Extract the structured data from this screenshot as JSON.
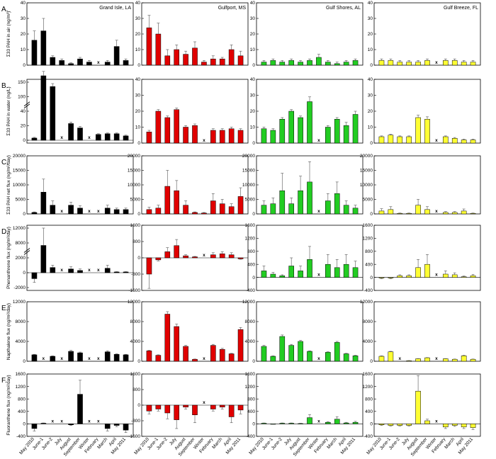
{
  "figure": {
    "sites": [
      "Grand Isle, LA",
      "Gulfport, MS",
      "Gulf Shores, AL",
      "Gulf Breeze, FL"
    ],
    "site_colors": [
      "#000000",
      "#e00000",
      "#22cc22",
      "#ffff33"
    ],
    "months": [
      "May 2010",
      "June-1",
      "June-2",
      "July",
      "August",
      "September",
      "Winter",
      "February",
      "March",
      "April",
      "May 2011"
    ],
    "missing_marker": "x"
  },
  "chart_data": [
    {
      "type": "bar",
      "row": "A.",
      "site": "Grand Isle, LA",
      "ylabel": "Σ33 PAH in air (ng/m³)",
      "ylim": [
        0,
        40
      ],
      "yticks": [
        "0",
        "10",
        "20",
        "30",
        "40"
      ],
      "values": [
        16,
        22,
        5,
        3,
        1,
        4,
        2,
        null,
        2,
        12,
        3
      ],
      "errors": [
        6,
        8,
        1,
        1,
        0.5,
        1,
        1,
        null,
        1,
        4,
        1
      ]
    },
    {
      "type": "bar",
      "row": "A.",
      "site": "Gulfport, MS",
      "ylim": [
        0,
        40
      ],
      "yticks": [
        "0",
        "10",
        "20",
        "30",
        "40"
      ],
      "values": [
        24,
        20,
        6,
        10,
        7,
        11,
        2,
        4,
        4,
        10,
        6
      ],
      "errors": [
        8,
        7,
        4,
        3,
        2,
        4,
        1,
        2,
        1,
        3,
        3
      ]
    },
    {
      "type": "bar",
      "row": "A.",
      "site": "Gulf Shores, AL",
      "ylim": [
        0,
        40
      ],
      "yticks": [
        "0",
        "10",
        "20",
        "30",
        "40"
      ],
      "values": [
        2,
        3,
        2,
        3,
        2,
        3,
        5,
        2,
        1,
        2,
        3
      ],
      "errors": [
        1,
        1,
        1,
        1,
        1,
        1,
        2,
        1,
        1,
        1,
        1
      ]
    },
    {
      "type": "bar",
      "row": "A.",
      "site": "Gulf Breeze, FL",
      "ylim": [
        0,
        40
      ],
      "yticks": [
        "0",
        "10",
        "20",
        "30",
        "40"
      ],
      "values": [
        3,
        3,
        2,
        2,
        2,
        3,
        null,
        3,
        3,
        2,
        2
      ],
      "errors": [
        1,
        1,
        1,
        1,
        1,
        1,
        null,
        1,
        1,
        1,
        1
      ]
    },
    {
      "type": "bar",
      "row": "B.",
      "site": "Grand Isle, LA",
      "ylabel": "Σ33 PAH in water (ng/L)",
      "axis_break": true,
      "ylim": [
        0,
        200
      ],
      "yticks": [
        "0",
        "20",
        "40",
        "100",
        "150"
      ],
      "values": [
        3,
        172,
        135,
        null,
        23,
        17,
        null,
        8,
        9,
        9,
        6
      ],
      "errors": [
        1,
        15,
        10,
        null,
        2,
        2,
        null,
        1,
        1,
        1,
        1
      ]
    },
    {
      "type": "bar",
      "row": "B.",
      "site": "Gulfport, MS",
      "ylim": [
        0,
        40
      ],
      "yticks": [
        "0",
        "10",
        "20",
        "30",
        "40"
      ],
      "values": [
        7,
        20,
        16,
        21,
        10,
        11,
        null,
        8,
        8,
        9,
        8
      ],
      "errors": [
        1,
        1,
        1,
        1,
        1,
        1,
        null,
        1,
        1,
        1,
        1
      ]
    },
    {
      "type": "bar",
      "row": "B.",
      "site": "Gulf Shores, AL",
      "ylim": [
        0,
        40
      ],
      "yticks": [
        "0",
        "10",
        "20",
        "30",
        "40"
      ],
      "values": [
        9,
        8,
        15,
        20,
        16,
        26,
        null,
        10,
        15,
        11,
        18
      ],
      "errors": [
        1,
        1,
        1,
        1,
        1,
        3,
        null,
        1,
        1,
        2,
        2
      ]
    },
    {
      "type": "bar",
      "row": "B.",
      "site": "Gulf Breeze, FL",
      "ylim": [
        0,
        40
      ],
      "yticks": [
        "0",
        "10",
        "20",
        "30",
        "40"
      ],
      "values": [
        4,
        5,
        4,
        4,
        16,
        15,
        null,
        4,
        3,
        2,
        2
      ],
      "errors": [
        0.5,
        0.5,
        0.5,
        0.5,
        1.5,
        1.5,
        null,
        0.5,
        0.5,
        0.5,
        0.5
      ]
    },
    {
      "type": "bar",
      "row": "C.",
      "site": "Grand Isle, LA",
      "ylabel": "Σ33 PAH net flux (ng/m²/day)",
      "ylim": [
        0,
        20000
      ],
      "yticks": [
        "0",
        "5000",
        "10000",
        "15000",
        "20000"
      ],
      "values": [
        500,
        7500,
        3000,
        null,
        3000,
        2000,
        null,
        null,
        2000,
        1500,
        1500
      ],
      "errors": [
        200,
        4500,
        1500,
        null,
        1000,
        800,
        null,
        null,
        1000,
        500,
        500
      ]
    },
    {
      "type": "bar",
      "row": "C.",
      "site": "Gulfport, MS",
      "ylim": [
        0,
        20000
      ],
      "yticks": [
        "0",
        "5000",
        "10000",
        "15000",
        "20000"
      ],
      "values": [
        1500,
        2000,
        9500,
        8000,
        3000,
        500,
        300,
        4500,
        3500,
        2500,
        6000
      ],
      "errors": [
        800,
        1000,
        5500,
        3500,
        1500,
        200,
        200,
        2500,
        1500,
        1000,
        3000
      ]
    },
    {
      "type": "bar",
      "row": "C.",
      "site": "Gulf Shores, AL",
      "ylim": [
        0,
        20000
      ],
      "yticks": [
        "0",
        "5000",
        "10000",
        "15000",
        "20000"
      ],
      "values": [
        3000,
        3500,
        8000,
        3500,
        8000,
        11000,
        null,
        4500,
        7000,
        3000,
        2000
      ],
      "errors": [
        1500,
        2000,
        6000,
        2000,
        5000,
        7000,
        null,
        2500,
        4000,
        1500,
        1000
      ]
    },
    {
      "type": "bar",
      "row": "C.",
      "site": "Gulf Breeze, FL",
      "ylim": [
        0,
        20000
      ],
      "yticks": [
        "0",
        "5000",
        "10000",
        "15000",
        "20000"
      ],
      "values": [
        1000,
        1500,
        200,
        200,
        3000,
        1500,
        null,
        500,
        500,
        1000,
        200
      ],
      "errors": [
        800,
        1000,
        100,
        100,
        2000,
        1000,
        null,
        300,
        300,
        700,
        100
      ]
    },
    {
      "type": "bar",
      "row": "D.",
      "site": "Grand Isle, LA",
      "ylabel": "Phenanthrene flux (ng/m²/day)",
      "axis_break": true,
      "ylim": [
        -2000,
        14000
      ],
      "yticks": [
        "-2000",
        "0",
        "2000",
        "8000",
        "12000"
      ],
      "values": [
        -800,
        7000,
        700,
        null,
        500,
        300,
        null,
        null,
        600,
        100,
        100
      ],
      "errors": [
        500,
        5000,
        300,
        null,
        300,
        200,
        null,
        null,
        400,
        50,
        50
      ]
    },
    {
      "type": "bar",
      "row": "D.",
      "site": "Gulfport, MS",
      "ylim": [
        -1600,
        1600
      ],
      "yticks": [
        "-1600",
        "-800",
        "0",
        "800",
        "1600"
      ],
      "values": [
        -800,
        -100,
        300,
        600,
        100,
        50,
        null,
        150,
        200,
        150,
        -50
      ],
      "errors": [
        700,
        50,
        200,
        300,
        50,
        20,
        null,
        100,
        100,
        100,
        20
      ]
    },
    {
      "type": "bar",
      "row": "D.",
      "site": "Gulf Shores, AL",
      "ylim": [
        -400,
        1600
      ],
      "yticks": [
        "-400",
        "0",
        "400",
        "800",
        "1200",
        "1600"
      ],
      "values": [
        200,
        100,
        50,
        350,
        200,
        550,
        null,
        400,
        300,
        400,
        300
      ],
      "errors": [
        150,
        50,
        30,
        250,
        150,
        400,
        null,
        300,
        250,
        300,
        200
      ]
    },
    {
      "type": "bar",
      "row": "D.",
      "site": "Gulf Breeze, FL",
      "ylim": [
        -400,
        1600
      ],
      "yticks": [
        "-400",
        "0",
        "400",
        "800",
        "1200",
        "1600"
      ],
      "values": [
        -20,
        -20,
        50,
        50,
        300,
        400,
        null,
        100,
        80,
        20,
        50
      ],
      "errors": [
        20,
        20,
        30,
        30,
        250,
        300,
        null,
        100,
        60,
        20,
        40
      ]
    },
    {
      "type": "bar",
      "row": "E.",
      "site": "Grand Isle, LA",
      "ylabel": "Napthalene flux (ng/m²/day)",
      "ylim": [
        0,
        12000
      ],
      "yticks": [
        "0",
        "4000",
        "8000",
        "12000"
      ],
      "values": [
        1300,
        null,
        1000,
        null,
        2000,
        1700,
        null,
        null,
        1900,
        1400,
        1300
      ],
      "errors": [
        100,
        null,
        100,
        null,
        200,
        150,
        null,
        null,
        200,
        100,
        100
      ]
    },
    {
      "type": "bar",
      "row": "E.",
      "site": "Gulfport, MS",
      "ylim": [
        0,
        12000
      ],
      "yticks": [
        "0",
        "4000",
        "8000",
        "12000"
      ],
      "values": [
        2100,
        1200,
        9500,
        7000,
        3000,
        400,
        null,
        3200,
        2400,
        1500,
        6400
      ],
      "errors": [
        100,
        100,
        500,
        500,
        200,
        50,
        null,
        200,
        200,
        100,
        400
      ]
    },
    {
      "type": "bar",
      "row": "E.",
      "site": "Gulf Shores, AL",
      "ylim": [
        0,
        12000
      ],
      "yticks": [
        "0",
        "4000",
        "8000",
        "12000"
      ],
      "values": [
        3000,
        1000,
        5000,
        3200,
        4000,
        2000,
        null,
        1800,
        3800,
        1500,
        1100
      ],
      "errors": [
        200,
        100,
        300,
        200,
        200,
        100,
        null,
        100,
        200,
        100,
        100
      ]
    },
    {
      "type": "bar",
      "row": "E.",
      "site": "Gulf Breeze, FL",
      "ylim": [
        0,
        12000
      ],
      "yticks": [
        "0",
        "4000",
        "8000",
        "12000"
      ],
      "values": [
        1000,
        1900,
        null,
        100,
        500,
        700,
        null,
        500,
        400,
        1100,
        400
      ],
      "errors": [
        100,
        100,
        null,
        50,
        50,
        50,
        null,
        50,
        50,
        100,
        50
      ]
    },
    {
      "type": "bar",
      "row": "F.",
      "site": "Grand Isle, LA",
      "ylabel": "Fluoranthene flux (ng/m²/day)",
      "ylim": [
        -400,
        1600
      ],
      "yticks": [
        "-400",
        "0",
        "400",
        "800",
        "1200",
        "1600"
      ],
      "values": [
        -150,
        20,
        null,
        null,
        -30,
        950,
        null,
        null,
        -150,
        -50,
        -200
      ],
      "errors": [
        80,
        10,
        null,
        null,
        20,
        450,
        null,
        null,
        80,
        40,
        80
      ]
    },
    {
      "type": "bar",
      "row": "F.",
      "site": "Gulfport, MS",
      "ylim": [
        -1600,
        1600
      ],
      "yticks": [
        "-1600",
        "-800",
        "0",
        "800",
        "1600"
      ],
      "values": [
        -300,
        -200,
        -400,
        -750,
        -100,
        -500,
        null,
        -200,
        -100,
        -600,
        -250
      ],
      "errors": [
        150,
        100,
        300,
        450,
        100,
        400,
        null,
        100,
        100,
        300,
        200
      ]
    },
    {
      "type": "bar",
      "row": "F.",
      "site": "Gulf Shores, AL",
      "ylim": [
        -400,
        1600
      ],
      "yticks": [
        "-400",
        "0",
        "400",
        "800",
        "1200",
        "1600"
      ],
      "values": [
        20,
        -10,
        20,
        20,
        10,
        200,
        null,
        50,
        150,
        30,
        50
      ],
      "errors": [
        10,
        5,
        10,
        10,
        10,
        100,
        null,
        20,
        80,
        20,
        30
      ]
    },
    {
      "type": "bar",
      "row": "F.",
      "site": "Gulf Breeze, FL",
      "ylim": [
        -400,
        1600
      ],
      "yticks": [
        "-400",
        "0",
        "400",
        "800",
        "1200",
        "1600"
      ],
      "values": [
        -30,
        -50,
        -50,
        -50,
        1050,
        100,
        null,
        -100,
        -50,
        -100,
        -120
      ],
      "errors": [
        20,
        20,
        20,
        20,
        500,
        50,
        null,
        50,
        30,
        50,
        60
      ]
    }
  ],
  "row_labels": [
    "A.",
    "B.",
    "C.",
    "D.",
    "E.",
    "F."
  ]
}
